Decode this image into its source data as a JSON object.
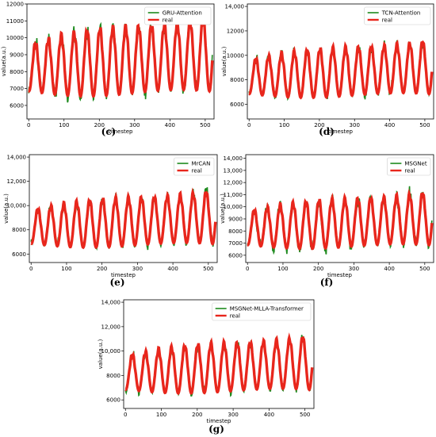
{
  "colors": {
    "predicted": "#1e8a1e",
    "real": "#e8261c"
  },
  "chart_data": [
    {
      "type": "line",
      "panel_label": "(c)",
      "xlabel": "timestep",
      "ylabel": "value(a.u.)",
      "xlim": [
        -5,
        525
      ],
      "ylim": [
        5200,
        12000
      ],
      "xticks": [
        0,
        100,
        200,
        300,
        400,
        500
      ],
      "yticks": [
        6000,
        7000,
        8000,
        9000,
        10000,
        11000,
        12000
      ],
      "ytick_labels": [
        "6000",
        "7000",
        "8000",
        "9000",
        "10000",
        "11000",
        "12000"
      ],
      "legend_position": "top-right",
      "series": [
        {
          "name": "GRU-Attention",
          "color": "#1e8a1e",
          "noise": 450
        },
        {
          "name": "real",
          "color": "#e8261c"
        }
      ]
    },
    {
      "type": "line",
      "panel_label": "(d)",
      "xlabel": "timestep",
      "ylabel": "value(a.u.)",
      "xlim": [
        -5,
        525
      ],
      "ylim": [
        4800,
        14200
      ],
      "xticks": [
        0,
        100,
        200,
        300,
        400,
        500
      ],
      "yticks": [
        6000,
        8000,
        10000,
        12000,
        14000
      ],
      "ytick_labels": [
        "6000",
        "8000",
        "10000",
        "12000",
        "14,000"
      ],
      "legend_position": "top-right",
      "series": [
        {
          "name": "TCN-Attention",
          "color": "#1e8a1e",
          "noise": 400
        },
        {
          "name": "real",
          "color": "#e8261c"
        }
      ]
    },
    {
      "type": "line",
      "panel_label": "(e)",
      "xlabel": "timestep",
      "ylabel": "value(a.u.)",
      "xlim": [
        -5,
        525
      ],
      "ylim": [
        5300,
        14200
      ],
      "xticks": [
        0,
        100,
        200,
        300,
        400,
        500
      ],
      "yticks": [
        6000,
        8000,
        10000,
        12000,
        14000
      ],
      "ytick_labels": [
        "6000",
        "8000",
        "10,000",
        "12,000",
        "14,000"
      ],
      "legend_position": "top-right",
      "series": [
        {
          "name": "MrCAN",
          "color": "#1e8a1e",
          "noise": 380
        },
        {
          "name": "real",
          "color": "#e8261c"
        }
      ]
    },
    {
      "type": "line",
      "panel_label": "(f)",
      "xlabel": "timestep",
      "ylabel": "value(a.u.)",
      "xlim": [
        -5,
        525
      ],
      "ylim": [
        5400,
        14300
      ],
      "xticks": [
        0,
        100,
        200,
        300,
        400,
        500
      ],
      "yticks": [
        6000,
        7000,
        8000,
        9000,
        10000,
        11000,
        12000,
        13000,
        14000
      ],
      "ytick_labels": [
        "6000",
        "7000",
        "8000",
        "9000",
        "10,000",
        "11,000",
        "12,000",
        "13,000",
        "14,000"
      ],
      "legend_position": "top-right",
      "series": [
        {
          "name": "MSGNet",
          "color": "#1e8a1e",
          "noise": 550
        },
        {
          "name": "real",
          "color": "#e8261c"
        }
      ]
    },
    {
      "type": "line",
      "panel_label": "(g)",
      "xlabel": "timestep",
      "ylabel": "value(a.u.)",
      "xlim": [
        -5,
        525
      ],
      "ylim": [
        5300,
        14200
      ],
      "xticks": [
        0,
        100,
        200,
        300,
        400,
        500
      ],
      "yticks": [
        6000,
        8000,
        10000,
        12000,
        14000
      ],
      "ytick_labels": [
        "6000",
        "8000",
        "10,000",
        "12,000",
        "14,000"
      ],
      "legend_position": "top-right",
      "series": [
        {
          "name": "MSGNet-MLLA-Transformer",
          "color": "#1e8a1e",
          "noise": 380
        },
        {
          "name": "real",
          "color": "#e8261c"
        }
      ]
    }
  ]
}
